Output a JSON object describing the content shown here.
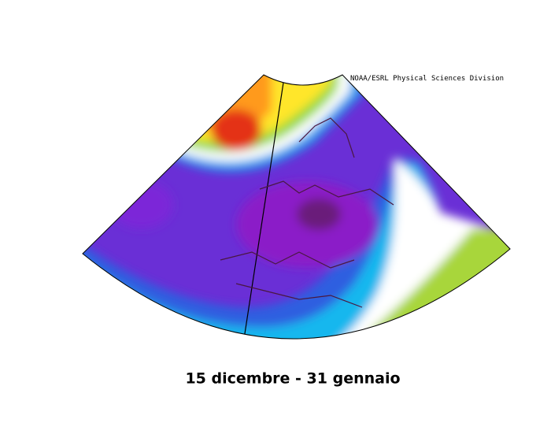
{
  "map": {
    "credit": "NOAA/ESRL Physical Sciences Division",
    "caption": "15 dicembre - 31 gennaio"
  }
}
